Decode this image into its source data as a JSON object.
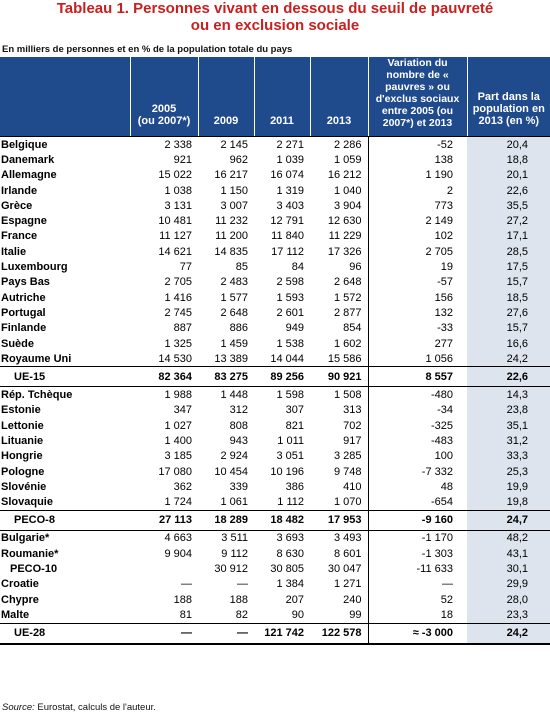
{
  "title_line1": "Tableau 1. Personnes vivant en dessous du seuil de pauvreté",
  "title_line2": "ou en exclusion sociale",
  "subtitle": "En milliers de personnes et en % de la population totale du pays",
  "headers": {
    "c2005": "2005\n(ou 2007*)",
    "c2009": "2009",
    "c2011": "2011",
    "c2013": "2013",
    "variation": "Variation du nombre de « pauvres » ou d'exclus sociaux entre 2005 (ou 2007*) et 2013",
    "part": "Part dans la population en 2013 (en %)"
  },
  "rows": [
    {
      "label": "Belgique",
      "v2005": "2 338",
      "v2009": "2 145",
      "v2011": "2 271",
      "v2013": "2 286",
      "var": "-52",
      "part": "20,4",
      "kind": "row"
    },
    {
      "label": "Danemark",
      "v2005": "921",
      "v2009": "962",
      "v2011": "1 039",
      "v2013": "1 059",
      "var": "138",
      "part": "18,8",
      "kind": "row"
    },
    {
      "label": "Allemagne",
      "v2005": "15 022",
      "v2009": "16 217",
      "v2011": "16 074",
      "v2013": "16 212",
      "var": "1 190",
      "part": "20,1",
      "kind": "row"
    },
    {
      "label": "Irlande",
      "v2005": "1 038",
      "v2009": "1 150",
      "v2011": "1 319",
      "v2013": "1 040",
      "var": "2",
      "part": "22,6",
      "kind": "row"
    },
    {
      "label": "Grèce",
      "v2005": "3 131",
      "v2009": "3 007",
      "v2011": "3 403",
      "v2013": "3 904",
      "var": "773",
      "part": "35,5",
      "kind": "row"
    },
    {
      "label": "Espagne",
      "v2005": "10 481",
      "v2009": "11 232",
      "v2011": "12 791",
      "v2013": "12 630",
      "var": "2 149",
      "part": "27,2",
      "kind": "row"
    },
    {
      "label": "France",
      "v2005": "11 127",
      "v2009": "11 200",
      "v2011": "11 840",
      "v2013": "11 229",
      "var": "102",
      "part": "17,1",
      "kind": "row"
    },
    {
      "label": "Italie",
      "v2005": "14 621",
      "v2009": "14 835",
      "v2011": "17 112",
      "v2013": "17 326",
      "var": "2 705",
      "part": "28,5",
      "kind": "row"
    },
    {
      "label": "Luxembourg",
      "v2005": "77",
      "v2009": "85",
      "v2011": "84",
      "v2013": "96",
      "var": "19",
      "part": "17,5",
      "kind": "row"
    },
    {
      "label": "Pays Bas",
      "v2005": "2 705",
      "v2009": "2 483",
      "v2011": "2 598",
      "v2013": "2 648",
      "var": "-57",
      "part": "15,7",
      "kind": "row"
    },
    {
      "label": "Autriche",
      "v2005": "1 416",
      "v2009": "1 577",
      "v2011": "1 593",
      "v2013": "1 572",
      "var": "156",
      "part": "18,5",
      "kind": "row"
    },
    {
      "label": "Portugal",
      "v2005": "2 745",
      "v2009": "2 648",
      "v2011": "2 601",
      "v2013": "2 877",
      "var": "132",
      "part": "27,6",
      "kind": "row"
    },
    {
      "label": "Finlande",
      "v2005": "887",
      "v2009": "886",
      "v2011": "949",
      "v2013": "854",
      "var": "-33",
      "part": "15,7",
      "kind": "row"
    },
    {
      "label": "Suède",
      "v2005": "1 325",
      "v2009": "1 459",
      "v2011": "1 538",
      "v2013": "1 602",
      "var": "277",
      "part": "16,6",
      "kind": "row"
    },
    {
      "label": "Royaume Uni",
      "v2005": "14 530",
      "v2009": "13 389",
      "v2011": "14 044",
      "v2013": "15 586",
      "var": "1 056",
      "part": "24,2",
      "kind": "row"
    },
    {
      "label": "UE-15",
      "v2005": "82 364",
      "v2009": "83 275",
      "v2011": "89 256",
      "v2013": "90 921",
      "var": "8 557",
      "part": "22,6",
      "kind": "total"
    },
    {
      "label": "Rép. Tchèque",
      "v2005": "1 988",
      "v2009": "1 448",
      "v2011": "1 598",
      "v2013": "1 508",
      "var": "-480",
      "part": "14,3",
      "kind": "row"
    },
    {
      "label": "Estonie",
      "v2005": "347",
      "v2009": "312",
      "v2011": "307",
      "v2013": "313",
      "var": "-34",
      "part": "23,8",
      "kind": "row"
    },
    {
      "label": "Lettonie",
      "v2005": "1 027",
      "v2009": "808",
      "v2011": "821",
      "v2013": "702",
      "var": "-325",
      "part": "35,1",
      "kind": "row"
    },
    {
      "label": "Lituanie",
      "v2005": "1 400",
      "v2009": "943",
      "v2011": "1 011",
      "v2013": "917",
      "var": "-483",
      "part": "31,2",
      "kind": "row"
    },
    {
      "label": "Hongrie",
      "v2005": "3 185",
      "v2009": "2 924",
      "v2011": "3 051",
      "v2013": "3 285",
      "var": "100",
      "part": "33,3",
      "kind": "row"
    },
    {
      "label": "Pologne",
      "v2005": "17 080",
      "v2009": "10 454",
      "v2011": "10 196",
      "v2013": "9 748",
      "var": "-7 332",
      "part": "25,3",
      "kind": "row"
    },
    {
      "label": "Slovénie",
      "v2005": "362",
      "v2009": "339",
      "v2011": "386",
      "v2013": "410",
      "var": "48",
      "part": "19,9",
      "kind": "row"
    },
    {
      "label": "Slovaquie",
      "v2005": "1 724",
      "v2009": "1 061",
      "v2011": "1 112",
      "v2013": "1 070",
      "var": "-654",
      "part": "19,8",
      "kind": "row"
    },
    {
      "label": "PECO-8",
      "v2005": "27 113",
      "v2009": "18 289",
      "v2011": "18 482",
      "v2013": "17 953",
      "var": "-9 160",
      "part": "24,7",
      "kind": "total"
    },
    {
      "label": "Bulgarie*",
      "v2005": "4 663",
      "v2009": "3 511",
      "v2011": "3 693",
      "v2013": "3 493",
      "var": "-1 170",
      "part": "48,2",
      "kind": "row"
    },
    {
      "label": "Roumanie*",
      "v2005": "9 904",
      "v2009": "9 112",
      "v2011": "8 630",
      "v2013": "8 601",
      "var": "-1 303",
      "part": "43,1",
      "kind": "row"
    },
    {
      "label": "PECO-10",
      "v2005": "",
      "v2009": "30 912",
      "v2011": "30 805",
      "v2013": "30 047",
      "var": "-11 633",
      "part": "30,1",
      "kind": "sub"
    },
    {
      "label": "Croatie",
      "v2005": "—",
      "v2009": "—",
      "v2011": "1 384",
      "v2013": "1 271",
      "var": "—",
      "part": "29,9",
      "kind": "row"
    },
    {
      "label": "Chypre",
      "v2005": "188",
      "v2009": "188",
      "v2011": "207",
      "v2013": "240",
      "var": "52",
      "part": "28,0",
      "kind": "row"
    },
    {
      "label": "Malte",
      "v2005": "81",
      "v2009": "82",
      "v2011": "90",
      "v2013": "99",
      "var": "18",
      "part": "23,3",
      "kind": "row"
    },
    {
      "label": "UE-28",
      "v2005": "—",
      "v2009": "—",
      "v2011": "121 742",
      "v2013": "122 578",
      "var": "≈ -3 000",
      "part": "24,2",
      "kind": "total-last"
    }
  ],
  "source_label": "Source:",
  "source_text": " Eurostat, calculs de l'auteur."
}
